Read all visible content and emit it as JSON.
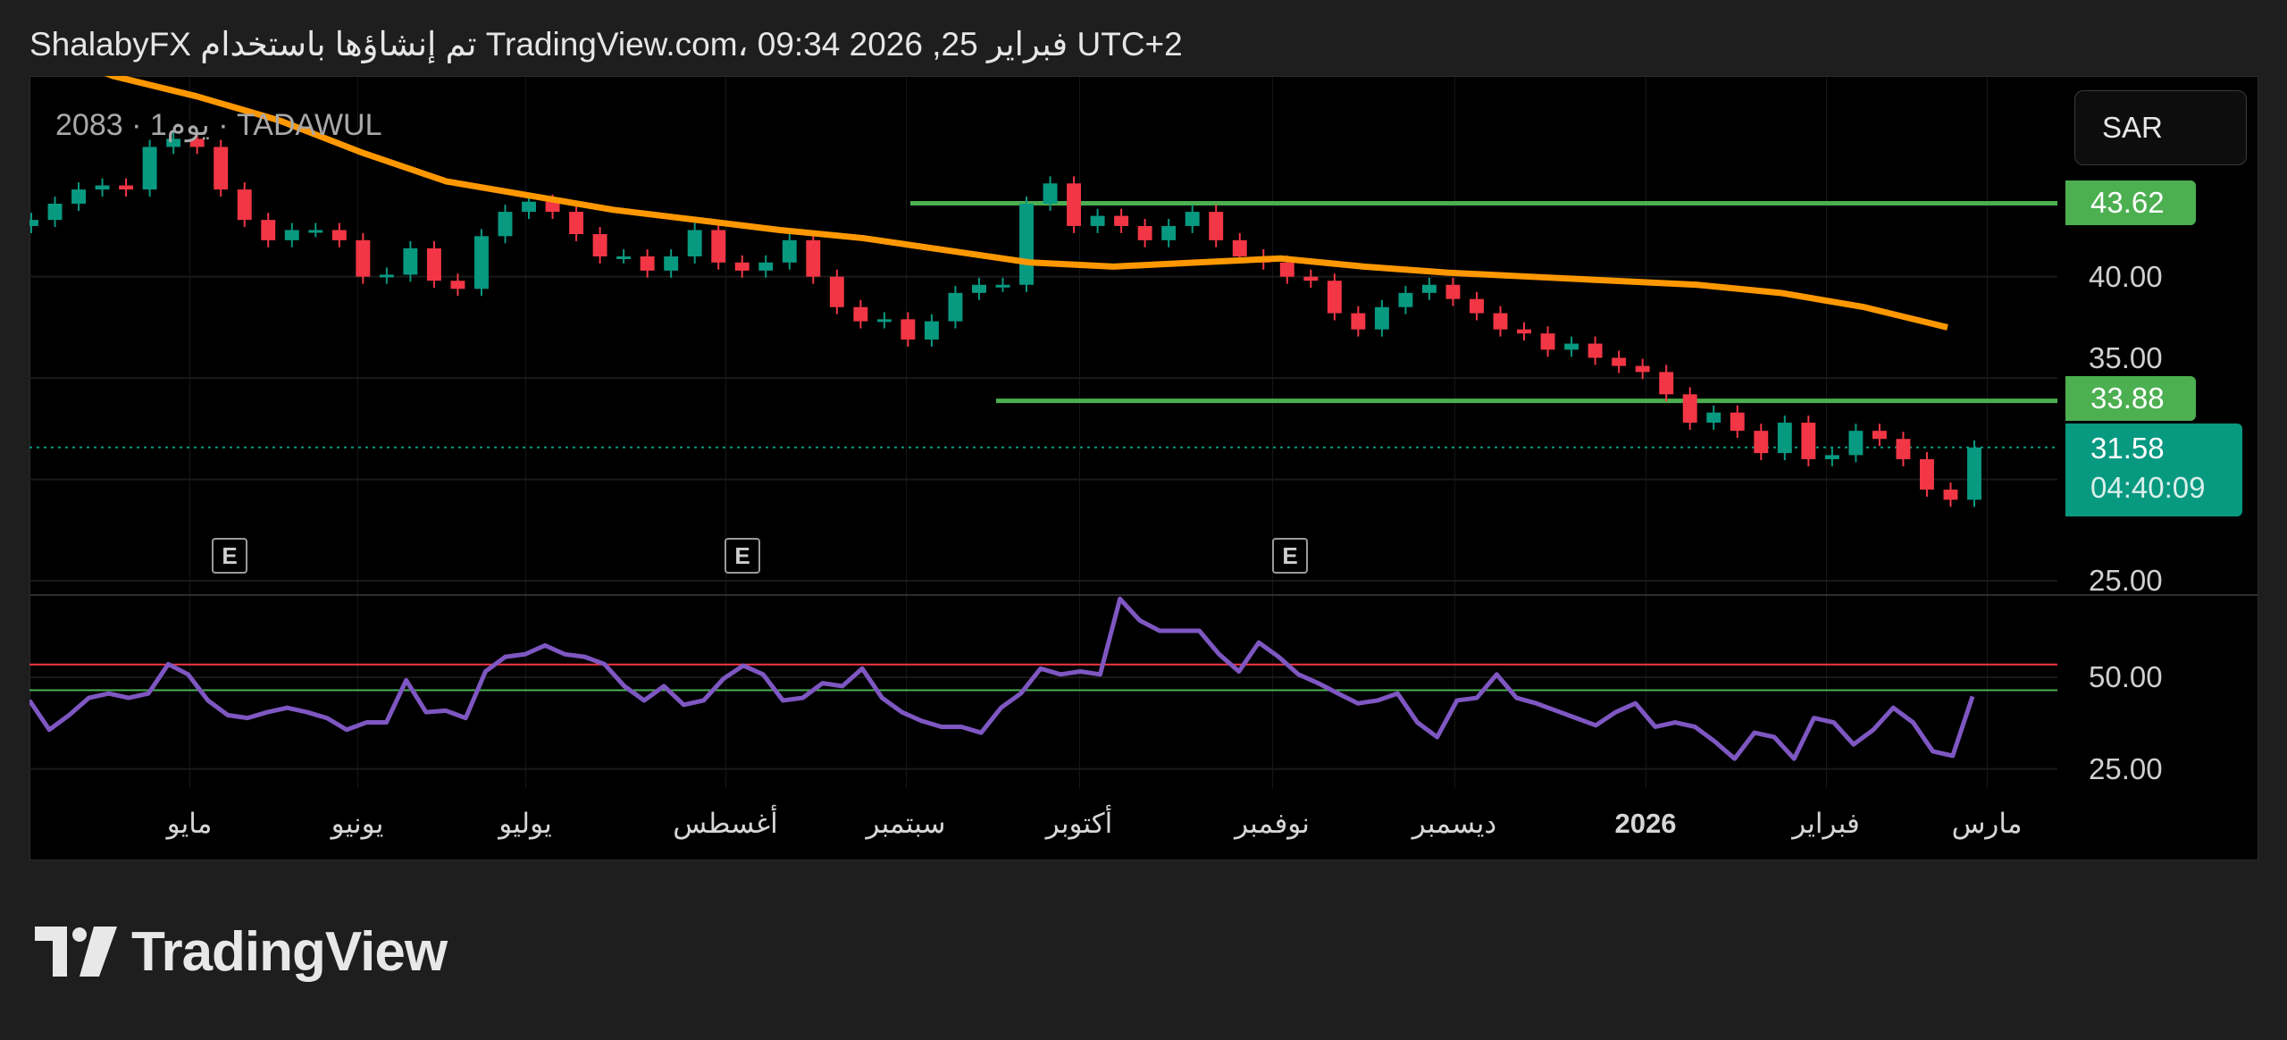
{
  "header": {
    "title": "ShalabyFX تم إنشاؤها باستخدام TradingView.com، 09:34 2026 ,25 فبراير UTC+2"
  },
  "legend": {
    "text": "2083 · 1يوم · TADAWUL"
  },
  "currency_button": "SAR",
  "earnings_markers": [
    "E",
    "E",
    "E"
  ],
  "logo": {
    "text": "TradingView"
  },
  "colors": {
    "up": "#089981",
    "down": "#f23645",
    "ma": "#ff9800",
    "levels": "#4caf50",
    "rsi": "#7e57c2",
    "rsi_upper_band": "#f23645",
    "rsi_lower_band": "#4caf50",
    "background": "#000000"
  },
  "chart_data": [
    {
      "type": "candlestick",
      "symbol": "2083",
      "exchange": "TADAWUL",
      "interval": "1يوم",
      "ylim": [
        24.3,
        49.9
      ],
      "grid": true,
      "price_axis": {
        "ticks": [
          "40.00",
          "35.00",
          "25.00"
        ],
        "tick_values": [
          40,
          35,
          25
        ]
      },
      "closes": [
        42.8,
        43.6,
        44.3,
        44.5,
        44.3,
        46.4,
        46.8,
        46.4,
        44.3,
        42.8,
        41.8,
        42.3,
        42.3,
        41.8,
        40.0,
        40.1,
        41.4,
        39.8,
        39.4,
        42.0,
        43.2,
        43.7,
        43.2,
        42.1,
        41.0,
        41.0,
        40.3,
        41.0,
        42.3,
        40.7,
        40.3,
        40.7,
        41.8,
        40.0,
        38.5,
        37.8,
        37.9,
        36.9,
        37.8,
        39.2,
        39.6,
        39.6,
        43.6,
        44.6,
        42.5,
        43.0,
        42.5,
        41.8,
        42.5,
        43.2,
        41.8,
        41.0,
        40.7,
        40.0,
        39.8,
        38.2,
        37.4,
        38.5,
        39.2,
        39.6,
        38.9,
        38.2,
        37.4,
        37.2,
        36.4,
        36.7,
        36.0,
        35.6,
        35.3,
        34.2,
        32.8,
        33.3,
        32.4,
        31.3,
        32.8,
        31.0,
        31.2,
        32.4,
        32.0,
        31.0,
        29.5,
        29.0,
        31.58
      ],
      "moving_average": [
        51.5,
        49.9,
        48.9,
        47.7,
        46.1,
        44.7,
        44.0,
        43.3,
        42.8,
        42.3,
        41.9,
        41.3,
        40.7,
        40.5,
        40.7,
        40.9,
        40.5,
        40.2,
        40.0,
        39.8,
        39.6,
        39.2,
        38.5,
        37.5
      ],
      "horizontal_levels": [
        {
          "value": 43.62,
          "label": "43.62"
        },
        {
          "value": 33.88,
          "label": "33.88"
        }
      ],
      "last_price": {
        "value": 31.58,
        "label": "31.58",
        "countdown": "04:40:09"
      }
    },
    {
      "type": "line",
      "indicator": "RSI",
      "ylim": [
        19.8,
        72.2
      ],
      "axis_ticks": [
        "50.00",
        "25.00"
      ],
      "axis_tick_values": [
        50,
        25
      ],
      "bands": [
        53.5,
        46.5
      ],
      "values": [
        43.7,
        35.7,
        39.7,
        44.4,
        45.6,
        44.4,
        45.6,
        53.6,
        50.8,
        43.7,
        39.7,
        38.9,
        40.5,
        41.7,
        40.5,
        38.9,
        35.7,
        37.7,
        37.7,
        49.2,
        40.5,
        40.9,
        38.9,
        51.6,
        55.6,
        56.3,
        58.7,
        56.3,
        55.6,
        53.6,
        47.6,
        43.7,
        47.6,
        42.5,
        43.7,
        49.6,
        53.2,
        50.8,
        43.7,
        44.4,
        48.4,
        47.6,
        52.4,
        44.4,
        40.5,
        38.1,
        36.5,
        36.5,
        34.9,
        41.7,
        45.6,
        52.4,
        50.8,
        51.6,
        50.8,
        71.4,
        65.5,
        62.7,
        62.7,
        62.7,
        56.3,
        51.6,
        59.5,
        55.6,
        50.8,
        48.4,
        45.6,
        42.9,
        43.7,
        45.6,
        37.7,
        33.7,
        43.7,
        44.4,
        50.8,
        44.4,
        42.9,
        40.9,
        38.9,
        36.9,
        40.5,
        42.9,
        36.5,
        37.7,
        36.5,
        32.5,
        27.8,
        34.9,
        33.7,
        27.8,
        38.9,
        37.7,
        31.7,
        35.7,
        41.7,
        37.7,
        29.8,
        28.6,
        44.8
      ]
    }
  ],
  "time_axis": {
    "labels": [
      "مايو",
      "يونيو",
      "يوليو",
      "أغسطس",
      "سبتمبر",
      "أكتوبر",
      "نوفمبر",
      "ديسمبر",
      "2026",
      "فبراير",
      "مارس"
    ]
  }
}
